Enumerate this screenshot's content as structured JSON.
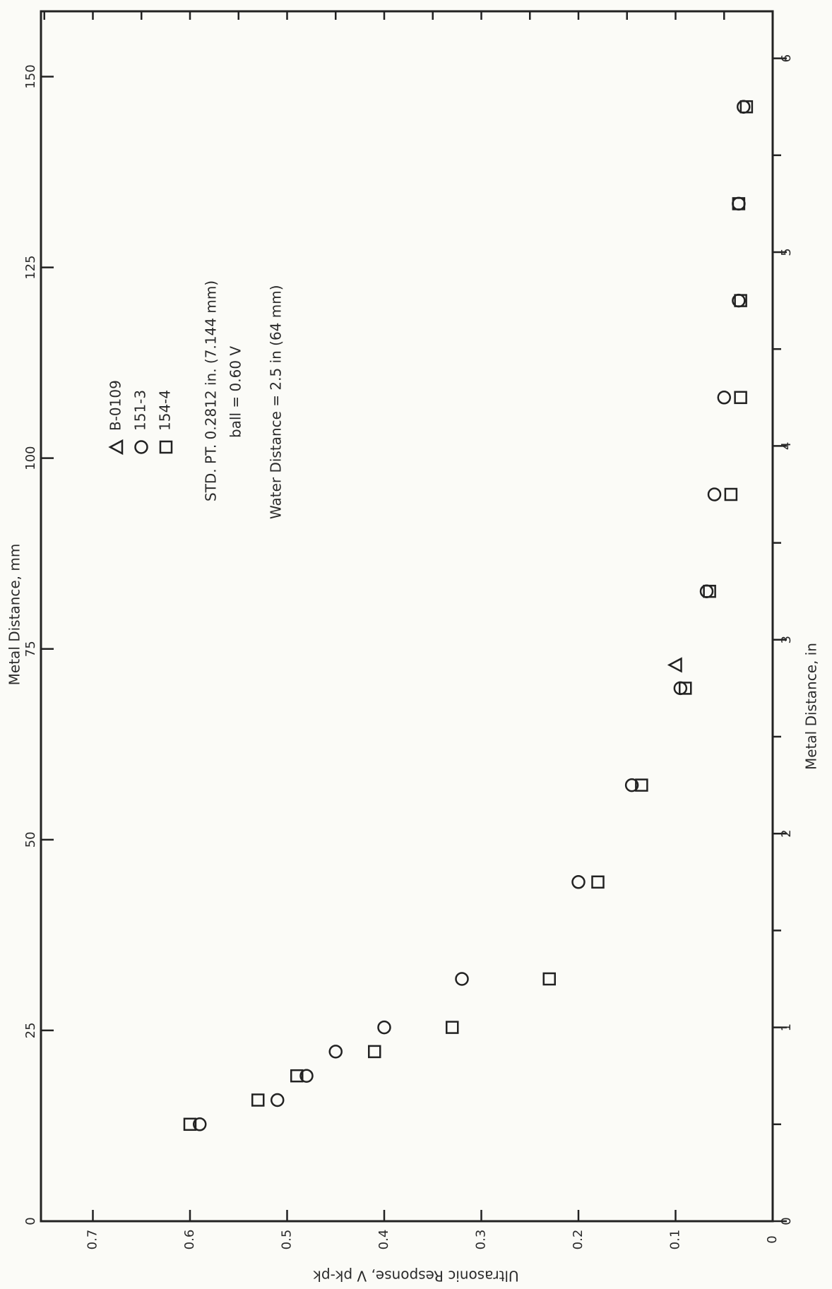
{
  "chart_data": {
    "type": "scatter",
    "title": "",
    "xlabel_top": "Metal Distance, mm",
    "xlabel_bottom": "Metal Distance, in",
    "ylabel": "Ultrasonic Response, V pk-pk",
    "xlim_in": [
      0,
      6.25
    ],
    "ylim": [
      0,
      0.75
    ],
    "mm_ticks": [
      0,
      25,
      50,
      75,
      100,
      125,
      150
    ],
    "in_ticks": [
      0,
      1,
      2,
      3,
      4,
      5,
      6
    ],
    "y_ticks": [
      0,
      0.1,
      0.2,
      0.3,
      0.4,
      0.5,
      0.6,
      0.7
    ],
    "y_tick_labels": [
      "0",
      "0.1",
      "0.2",
      "0.3",
      "0.4",
      "0.5",
      "0.6",
      "0.7"
    ],
    "grid": false,
    "legend_placement": "top-center",
    "series": [
      {
        "name": "B-0109",
        "marker": "triangle",
        "x_in": [
          2.87
        ],
        "y": [
          0.1
        ]
      },
      {
        "name": "151-3",
        "marker": "circle",
        "x_in": [
          0.5,
          0.625,
          0.75,
          0.875,
          1.0,
          1.25,
          1.75,
          2.25,
          2.75,
          3.25,
          3.75,
          4.25,
          4.75,
          5.25,
          5.75
        ],
        "y": [
          0.59,
          0.51,
          0.48,
          0.45,
          0.4,
          0.32,
          0.2,
          0.145,
          0.095,
          0.068,
          0.06,
          0.05,
          0.035,
          0.035,
          0.03
        ]
      },
      {
        "name": "154-4",
        "marker": "square",
        "x_in": [
          0.5,
          0.625,
          0.75,
          0.875,
          1.0,
          1.25,
          1.75,
          2.25,
          2.75,
          3.25,
          3.75,
          4.25,
          4.75,
          5.25,
          5.75
        ],
        "y": [
          0.6,
          0.53,
          0.49,
          0.41,
          0.33,
          0.23,
          0.18,
          0.135,
          0.09,
          0.065,
          0.043,
          0.033,
          0.033,
          0.035,
          0.027
        ]
      }
    ],
    "annotations": [
      "STD. PT.  0.2812 in. (7.144 mm)",
      "ball = 0.60 V",
      "Water Distance = 2.5 in (64 mm)"
    ]
  }
}
